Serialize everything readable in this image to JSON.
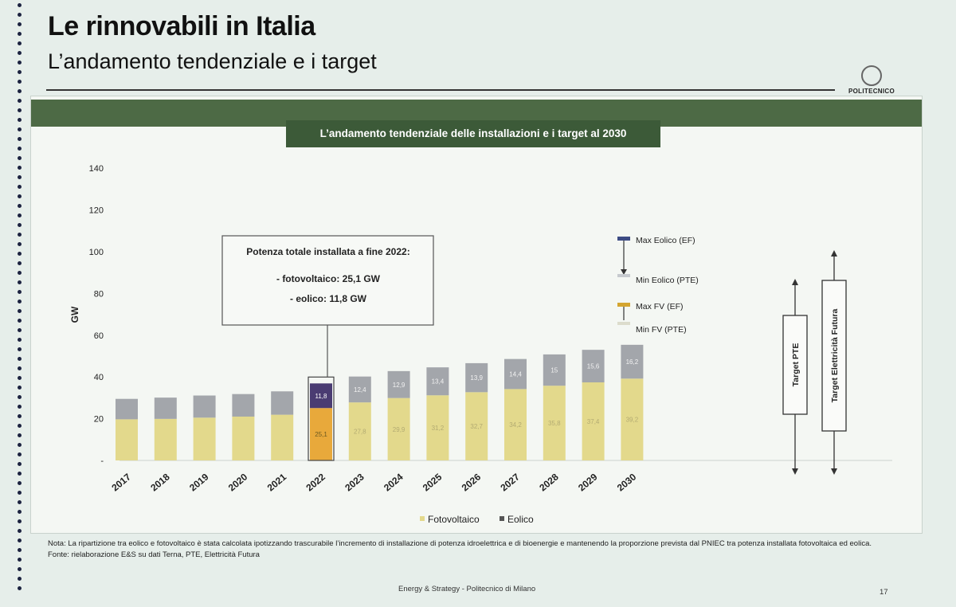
{
  "slide": {
    "title": "Le rinnovabili in Italia",
    "subtitle": "L’andamento tendenziale e i target",
    "banner": "L’andamento tendenziale delle installazioni e i target al 2030",
    "logo_text": "POLITECNICO",
    "logo_es": "ès",
    "note": "Nota: La ripartizione tra eolico e fotovoltaico è stata calcolata ipotizzando trascurabile l’incremento di installazione di potenza idroelettrica e di bioenergie e mantenendo la proporzione prevista dal PNIEC tra potenza installata fotovoltaica ed eolica.",
    "source": "Fonte: rielaborazione E&S su dati Terna, PTE, Elettricità Futura",
    "footer": "Energy & Strategy - Politecnico di Milano",
    "page": "17"
  },
  "chart_data": {
    "type": "bar",
    "stacked": true,
    "ylabel": "GW",
    "ylim": [
      0,
      140
    ],
    "yticks": [
      0,
      20,
      40,
      60,
      80,
      100,
      120,
      140
    ],
    "ytick_labels": [
      "-",
      "20",
      "40",
      "60",
      "80",
      "100",
      "120",
      "140"
    ],
    "categories": [
      "2017",
      "2018",
      "2019",
      "2020",
      "2021",
      "2022",
      "2023",
      "2024",
      "2025",
      "2026",
      "2027",
      "2028",
      "2029",
      "2030"
    ],
    "series": [
      {
        "name": "Fotovoltaico",
        "color": "#e3d98c",
        "values": [
          19.7,
          19.9,
          20.5,
          21.0,
          21.9,
          25.1,
          27.8,
          29.9,
          31.2,
          32.7,
          34.2,
          35.8,
          37.4,
          39.2
        ]
      },
      {
        "name": "Eolico",
        "color": "#a3a6ab",
        "values": [
          9.8,
          10.2,
          10.6,
          10.8,
          11.2,
          11.8,
          12.4,
          12.9,
          13.4,
          13.9,
          14.4,
          15.0,
          15.6,
          16.2
        ]
      }
    ],
    "value_labels_shown_from": "2022",
    "highlight": {
      "category": "2022",
      "fv_color": "#e8a93b",
      "eolico_color": "#4a3c72"
    },
    "legend": [
      "Fotovoltaico",
      "Eolico"
    ],
    "callout": {
      "lines": [
        "Potenza totale installata a fine 2022:",
        "- fotovoltaico: 25,1 GW",
        "- eolico: 11,8 GW"
      ]
    },
    "range_legend": [
      "Max Eolico (EF)",
      "Min Eolico (PTE)",
      "Max FV (EF)",
      "Min FV (PTE)"
    ],
    "range_legend_colors": {
      "max_eolico": "#3d4c84",
      "min_eolico": "#c6cace",
      "max_fv": "#d4a530",
      "min_fv": "#dcdccc"
    },
    "targets": [
      "Target PTE",
      "Target Elettricità Futura"
    ]
  }
}
